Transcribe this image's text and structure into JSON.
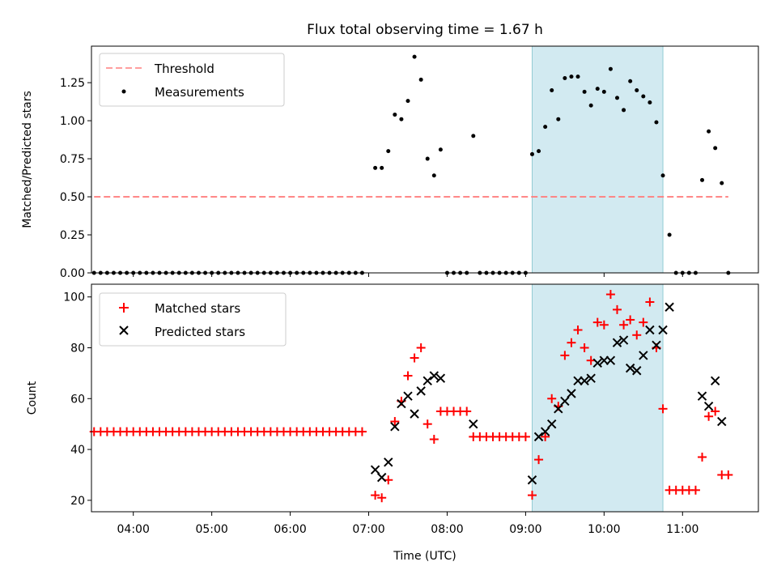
{
  "chart_data": [
    {
      "type": "scatter",
      "title": "Flux total observing time = 1.67 h",
      "xlabel": "",
      "ylabel": "Matched/Predicted stars",
      "xlim": [
        "03:28",
        "11:58"
      ],
      "ylim": [
        0,
        1.49
      ],
      "yticks": [
        0.0,
        0.25,
        0.5,
        0.75,
        1.0,
        1.25
      ],
      "ytick_labels": [
        "0.00",
        "0.25",
        "0.50",
        "0.75",
        "1.00",
        "1.25"
      ],
      "shaded_interval": [
        "09:05",
        "10:45"
      ],
      "shade_color": "#add8e6",
      "legend_position": "upper-left",
      "series": [
        {
          "name": "Threshold",
          "kind": "dashed-line",
          "color": "#ff7f7f",
          "x": [
            "03:30",
            "11:35"
          ],
          "y": [
            0.5,
            0.5
          ]
        },
        {
          "name": "Measurements",
          "kind": "dot",
          "color": "#000000",
          "points": [
            [
              "03:30",
              0
            ],
            [
              "03:35",
              0
            ],
            [
              "03:40",
              0
            ],
            [
              "03:45",
              0
            ],
            [
              "03:50",
              0
            ],
            [
              "03:55",
              0
            ],
            [
              "04:00",
              0
            ],
            [
              "04:05",
              0
            ],
            [
              "04:10",
              0
            ],
            [
              "04:15",
              0
            ],
            [
              "04:20",
              0
            ],
            [
              "04:25",
              0
            ],
            [
              "04:30",
              0
            ],
            [
              "04:35",
              0
            ],
            [
              "04:40",
              0
            ],
            [
              "04:45",
              0
            ],
            [
              "04:50",
              0
            ],
            [
              "04:55",
              0
            ],
            [
              "05:00",
              0
            ],
            [
              "05:05",
              0
            ],
            [
              "05:10",
              0
            ],
            [
              "05:15",
              0
            ],
            [
              "05:20",
              0
            ],
            [
              "05:25",
              0
            ],
            [
              "05:30",
              0
            ],
            [
              "05:35",
              0
            ],
            [
              "05:40",
              0
            ],
            [
              "05:45",
              0
            ],
            [
              "05:50",
              0
            ],
            [
              "05:55",
              0
            ],
            [
              "06:00",
              0
            ],
            [
              "06:05",
              0
            ],
            [
              "06:10",
              0
            ],
            [
              "06:15",
              0
            ],
            [
              "06:20",
              0
            ],
            [
              "06:25",
              0
            ],
            [
              "06:30",
              0
            ],
            [
              "06:35",
              0
            ],
            [
              "06:40",
              0
            ],
            [
              "06:45",
              0
            ],
            [
              "06:50",
              0
            ],
            [
              "06:55",
              0
            ],
            [
              "07:05",
              0.69
            ],
            [
              "07:10",
              0.69
            ],
            [
              "07:15",
              0.8
            ],
            [
              "07:20",
              1.04
            ],
            [
              "07:25",
              1.01
            ],
            [
              "07:30",
              1.13
            ],
            [
              "07:35",
              1.42
            ],
            [
              "07:40",
              1.27
            ],
            [
              "07:45",
              0.75
            ],
            [
              "07:50",
              0.64
            ],
            [
              "07:55",
              0.81
            ],
            [
              "08:00",
              0
            ],
            [
              "08:05",
              0
            ],
            [
              "08:10",
              0
            ],
            [
              "08:15",
              0
            ],
            [
              "08:20",
              0.9
            ],
            [
              "08:25",
              0
            ],
            [
              "08:30",
              0
            ],
            [
              "08:35",
              0
            ],
            [
              "08:40",
              0
            ],
            [
              "08:45",
              0
            ],
            [
              "08:50",
              0
            ],
            [
              "08:55",
              0
            ],
            [
              "09:00",
              0
            ],
            [
              "09:05",
              0.78
            ],
            [
              "09:10",
              0.8
            ],
            [
              "09:15",
              0.96
            ],
            [
              "09:20",
              1.2
            ],
            [
              "09:25",
              1.01
            ],
            [
              "09:30",
              1.28
            ],
            [
              "09:35",
              1.29
            ],
            [
              "09:40",
              1.29
            ],
            [
              "09:45",
              1.19
            ],
            [
              "09:50",
              1.1
            ],
            [
              "09:55",
              1.21
            ],
            [
              "10:00",
              1.19
            ],
            [
              "10:05",
              1.34
            ],
            [
              "10:10",
              1.15
            ],
            [
              "10:15",
              1.07
            ],
            [
              "10:20",
              1.26
            ],
            [
              "10:25",
              1.2
            ],
            [
              "10:30",
              1.16
            ],
            [
              "10:35",
              1.12
            ],
            [
              "10:40",
              0.99
            ],
            [
              "10:45",
              0.64
            ],
            [
              "10:50",
              0.25
            ],
            [
              "10:55",
              0
            ],
            [
              "11:00",
              0
            ],
            [
              "11:05",
              0
            ],
            [
              "11:10",
              0
            ],
            [
              "11:15",
              0.61
            ],
            [
              "11:20",
              0.93
            ],
            [
              "11:25",
              0.82
            ],
            [
              "11:30",
              0.59
            ],
            [
              "11:35",
              0
            ]
          ]
        }
      ]
    },
    {
      "type": "scatter",
      "title": "",
      "xlabel": "Time (UTC)",
      "ylabel": "Count",
      "xlim": [
        "03:28",
        "11:58"
      ],
      "ylim": [
        15.5,
        105
      ],
      "yticks": [
        20,
        40,
        60,
        80,
        100
      ],
      "ytick_labels": [
        "20",
        "40",
        "60",
        "80",
        "100"
      ],
      "xticks": [
        "04:00",
        "05:00",
        "06:00",
        "07:00",
        "08:00",
        "09:00",
        "10:00",
        "11:00"
      ],
      "xtick_labels": [
        "04:00",
        "05:00",
        "06:00",
        "07:00",
        "08:00",
        "09:00",
        "10:00",
        "11:00"
      ],
      "shaded_interval": [
        "09:05",
        "10:45"
      ],
      "shade_color": "#add8e6",
      "legend_position": "upper-left",
      "series": [
        {
          "name": "Matched stars",
          "marker": "+",
          "color": "#ff0000",
          "points": [
            [
              "03:30",
              47
            ],
            [
              "03:35",
              47
            ],
            [
              "03:40",
              47
            ],
            [
              "03:45",
              47
            ],
            [
              "03:50",
              47
            ],
            [
              "03:55",
              47
            ],
            [
              "04:00",
              47
            ],
            [
              "04:05",
              47
            ],
            [
              "04:10",
              47
            ],
            [
              "04:15",
              47
            ],
            [
              "04:20",
              47
            ],
            [
              "04:25",
              47
            ],
            [
              "04:30",
              47
            ],
            [
              "04:35",
              47
            ],
            [
              "04:40",
              47
            ],
            [
              "04:45",
              47
            ],
            [
              "04:50",
              47
            ],
            [
              "04:55",
              47
            ],
            [
              "05:00",
              47
            ],
            [
              "05:05",
              47
            ],
            [
              "05:10",
              47
            ],
            [
              "05:15",
              47
            ],
            [
              "05:20",
              47
            ],
            [
              "05:25",
              47
            ],
            [
              "05:30",
              47
            ],
            [
              "05:35",
              47
            ],
            [
              "05:40",
              47
            ],
            [
              "05:45",
              47
            ],
            [
              "05:50",
              47
            ],
            [
              "05:55",
              47
            ],
            [
              "06:00",
              47
            ],
            [
              "06:05",
              47
            ],
            [
              "06:10",
              47
            ],
            [
              "06:15",
              47
            ],
            [
              "06:20",
              47
            ],
            [
              "06:25",
              47
            ],
            [
              "06:30",
              47
            ],
            [
              "06:35",
              47
            ],
            [
              "06:40",
              47
            ],
            [
              "06:45",
              47
            ],
            [
              "06:50",
              47
            ],
            [
              "06:55",
              47
            ],
            [
              "07:05",
              22
            ],
            [
              "07:10",
              21
            ],
            [
              "07:15",
              28
            ],
            [
              "07:20",
              51
            ],
            [
              "07:25",
              59
            ],
            [
              "07:30",
              69
            ],
            [
              "07:35",
              76
            ],
            [
              "07:40",
              80
            ],
            [
              "07:45",
              50
            ],
            [
              "07:50",
              44
            ],
            [
              "07:55",
              55
            ],
            [
              "08:00",
              55
            ],
            [
              "08:05",
              55
            ],
            [
              "08:10",
              55
            ],
            [
              "08:15",
              55
            ],
            [
              "08:20",
              45
            ],
            [
              "08:25",
              45
            ],
            [
              "08:30",
              45
            ],
            [
              "08:35",
              45
            ],
            [
              "08:40",
              45
            ],
            [
              "08:45",
              45
            ],
            [
              "08:50",
              45
            ],
            [
              "08:55",
              45
            ],
            [
              "09:00",
              45
            ],
            [
              "09:05",
              22
            ],
            [
              "09:10",
              36
            ],
            [
              "09:15",
              45
            ],
            [
              "09:20",
              60
            ],
            [
              "09:25",
              57
            ],
            [
              "09:30",
              77
            ],
            [
              "09:35",
              82
            ],
            [
              "09:40",
              87
            ],
            [
              "09:45",
              80
            ],
            [
              "09:50",
              75
            ],
            [
              "09:55",
              90
            ],
            [
              "10:00",
              89
            ],
            [
              "10:05",
              101
            ],
            [
              "10:10",
              95
            ],
            [
              "10:15",
              89
            ],
            [
              "10:20",
              91
            ],
            [
              "10:25",
              85
            ],
            [
              "10:30",
              90
            ],
            [
              "10:35",
              98
            ],
            [
              "10:40",
              80
            ],
            [
              "10:45",
              56
            ],
            [
              "10:50",
              24
            ],
            [
              "10:55",
              24
            ],
            [
              "11:00",
              24
            ],
            [
              "11:05",
              24
            ],
            [
              "11:10",
              24
            ],
            [
              "11:15",
              37
            ],
            [
              "11:20",
              53
            ],
            [
              "11:25",
              55
            ],
            [
              "11:30",
              30
            ],
            [
              "11:35",
              30
            ]
          ]
        },
        {
          "name": "Predicted stars",
          "marker": "x",
          "color": "#000000",
          "points": [
            [
              "07:05",
              32
            ],
            [
              "07:10",
              29
            ],
            [
              "07:15",
              35
            ],
            [
              "07:20",
              49
            ],
            [
              "07:25",
              58
            ],
            [
              "07:30",
              61
            ],
            [
              "07:35",
              54
            ],
            [
              "07:40",
              63
            ],
            [
              "07:45",
              67
            ],
            [
              "07:50",
              69
            ],
            [
              "07:55",
              68
            ],
            [
              "08:20",
              50
            ],
            [
              "09:05",
              28
            ],
            [
              "09:10",
              45
            ],
            [
              "09:15",
              47
            ],
            [
              "09:20",
              50
            ],
            [
              "09:25",
              56
            ],
            [
              "09:30",
              59
            ],
            [
              "09:35",
              62
            ],
            [
              "09:40",
              67
            ],
            [
              "09:45",
              67
            ],
            [
              "09:50",
              68
            ],
            [
              "09:55",
              74
            ],
            [
              "10:00",
              75
            ],
            [
              "10:05",
              75
            ],
            [
              "10:10",
              82
            ],
            [
              "10:15",
              83
            ],
            [
              "10:20",
              72
            ],
            [
              "10:25",
              71
            ],
            [
              "10:30",
              77
            ],
            [
              "10:35",
              87
            ],
            [
              "10:40",
              81
            ],
            [
              "10:45",
              87
            ],
            [
              "10:50",
              96
            ],
            [
              "11:15",
              61
            ],
            [
              "11:20",
              57
            ],
            [
              "11:25",
              67
            ],
            [
              "11:30",
              51
            ]
          ]
        }
      ]
    }
  ]
}
